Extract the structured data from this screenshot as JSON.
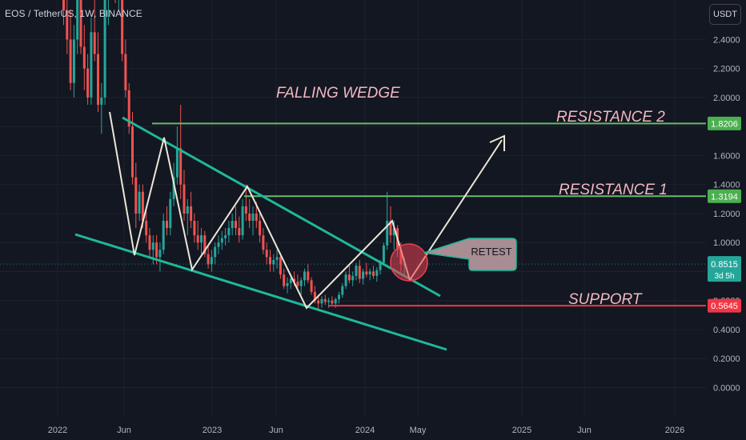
{
  "header": {
    "symbol_title": "EOS / TetherUS, 1W, BINANCE",
    "currency": "USDT"
  },
  "chart_data": {
    "type": "candlestick",
    "symbol": "EOS / TetherUS",
    "interval": "1W",
    "exchange": "BINANCE",
    "y_axis": {
      "ticks": [
        0.0,
        0.2,
        0.4,
        0.6,
        0.8,
        1.0,
        1.2,
        1.4,
        1.6,
        1.8,
        2.0,
        2.2,
        2.4
      ],
      "tick_labels": [
        "0.0000",
        "0.2000",
        "0.4000",
        "0.6000",
        "0.8000",
        "1.0000",
        "1.2000",
        "1.4000",
        "1.6000",
        "1.8000",
        "2.0000",
        "2.2000",
        "2.4000"
      ],
      "range": [
        -0.05,
        2.6
      ]
    },
    "x_axis": {
      "labels": [
        "2022",
        "Jun",
        "2023",
        "Jun",
        "2024",
        "May",
        "2025",
        "Jun",
        "2026"
      ]
    },
    "price_labels": [
      {
        "value": 1.8206,
        "text": "1.8206",
        "color": "#4caf50"
      },
      {
        "value": 1.3194,
        "text": "1.3194",
        "color": "#4caf50"
      },
      {
        "value": 0.8515,
        "text": "0.8515",
        "sub": "3d 5h",
        "color": "#26a69a"
      },
      {
        "value": 0.5645,
        "text": "0.5645",
        "color": "#f23645"
      }
    ],
    "annotations": {
      "pattern": "FALLING WEDGE",
      "resistance_2": "RESISTANCE 2",
      "resistance_1": "RESISTANCE 1",
      "support": "SUPPORT",
      "retest": "RETEST"
    },
    "levels": {
      "resistance_2": 1.8206,
      "resistance_1": 1.3194,
      "support": 0.5645
    },
    "candles": [
      [
        2.95,
        3.05,
        2.5,
        2.6
      ],
      [
        2.6,
        2.8,
        2.3,
        2.4
      ],
      [
        2.4,
        2.6,
        2.05,
        2.1
      ],
      [
        2.1,
        2.5,
        2.0,
        2.4
      ],
      [
        2.4,
        2.9,
        2.3,
        2.8
      ],
      [
        2.8,
        2.95,
        2.3,
        2.35
      ],
      [
        2.35,
        2.5,
        2.05,
        2.2
      ],
      [
        2.2,
        2.3,
        1.95,
        2.0
      ],
      [
        2.0,
        2.55,
        1.95,
        2.45
      ],
      [
        2.45,
        2.7,
        2.25,
        2.3
      ],
      [
        2.3,
        2.45,
        1.9,
        1.95
      ],
      [
        1.95,
        2.1,
        1.75,
        2.0
      ],
      [
        2.0,
        2.8,
        1.95,
        2.7
      ],
      [
        2.7,
        3.05,
        2.5,
        2.9
      ],
      [
        2.9,
        3.2,
        2.7,
        3.0
      ],
      [
        3.0,
        3.2,
        2.65,
        2.7
      ],
      [
        2.7,
        2.95,
        2.6,
        2.85
      ],
      [
        2.85,
        2.9,
        2.25,
        2.3
      ],
      [
        2.3,
        2.4,
        2.0,
        2.05
      ],
      [
        2.05,
        2.1,
        1.75,
        1.8
      ],
      [
        1.8,
        1.9,
        1.4,
        1.45
      ],
      [
        1.45,
        1.55,
        1.1,
        1.2
      ],
      [
        1.2,
        1.4,
        1.15,
        1.35
      ],
      [
        1.35,
        1.4,
        1.1,
        1.15
      ],
      [
        1.15,
        1.25,
        1.0,
        1.05
      ],
      [
        1.05,
        1.1,
        0.9,
        0.95
      ],
      [
        0.95,
        1.05,
        0.85,
        1.0
      ],
      [
        1.0,
        1.05,
        0.85,
        0.9
      ],
      [
        0.9,
        1.0,
        0.8,
        0.95
      ],
      [
        0.95,
        1.2,
        0.92,
        1.15
      ],
      [
        1.15,
        1.25,
        1.05,
        1.1
      ],
      [
        1.1,
        1.35,
        1.05,
        1.3
      ],
      [
        1.3,
        1.55,
        1.25,
        1.45
      ],
      [
        1.45,
        1.8,
        1.4,
        1.65
      ],
      [
        1.65,
        1.95,
        1.3,
        1.4
      ],
      [
        1.4,
        1.5,
        1.15,
        1.2
      ],
      [
        1.2,
        1.3,
        1.05,
        1.25
      ],
      [
        1.25,
        1.35,
        1.1,
        1.15
      ],
      [
        1.15,
        1.2,
        1.0,
        1.05
      ],
      [
        1.05,
        1.15,
        0.95,
        1.0
      ],
      [
        1.0,
        1.1,
        0.92,
        1.05
      ],
      [
        1.05,
        1.08,
        0.9,
        0.92
      ],
      [
        0.92,
        0.98,
        0.82,
        0.85
      ],
      [
        0.85,
        0.95,
        0.8,
        0.9
      ],
      [
        0.9,
        1.0,
        0.85,
        0.97
      ],
      [
        0.97,
        1.05,
        0.92,
        1.0
      ],
      [
        1.0,
        1.08,
        0.95,
        1.03
      ],
      [
        1.03,
        1.1,
        0.98,
        1.05
      ],
      [
        1.05,
        1.15,
        1.0,
        1.1
      ],
      [
        1.1,
        1.2,
        1.05,
        1.15
      ],
      [
        1.15,
        1.25,
        1.05,
        1.1
      ],
      [
        1.1,
        1.18,
        1.0,
        1.05
      ],
      [
        1.05,
        1.3,
        1.02,
        1.25
      ],
      [
        1.25,
        1.4,
        1.15,
        1.2
      ],
      [
        1.2,
        1.3,
        1.1,
        1.15
      ],
      [
        1.15,
        1.25,
        1.05,
        1.2
      ],
      [
        1.2,
        1.28,
        1.1,
        1.15
      ],
      [
        1.15,
        1.2,
        1.0,
        1.05
      ],
      [
        1.05,
        1.1,
        0.92,
        0.95
      ],
      [
        0.95,
        1.0,
        0.85,
        0.9
      ],
      [
        0.9,
        0.95,
        0.8,
        0.85
      ],
      [
        0.85,
        0.92,
        0.8,
        0.88
      ],
      [
        0.88,
        0.95,
        0.82,
        0.9
      ],
      [
        0.9,
        0.93,
        0.75,
        0.78
      ],
      [
        0.78,
        0.82,
        0.68,
        0.7
      ],
      [
        0.7,
        0.76,
        0.65,
        0.72
      ],
      [
        0.72,
        0.78,
        0.68,
        0.75
      ],
      [
        0.75,
        0.8,
        0.7,
        0.73
      ],
      [
        0.73,
        0.78,
        0.68,
        0.7
      ],
      [
        0.7,
        0.76,
        0.64,
        0.74
      ],
      [
        0.74,
        0.82,
        0.7,
        0.8
      ],
      [
        0.8,
        0.85,
        0.72,
        0.74
      ],
      [
        0.74,
        0.76,
        0.64,
        0.66
      ],
      [
        0.66,
        0.7,
        0.58,
        0.6
      ],
      [
        0.6,
        0.64,
        0.54,
        0.58
      ],
      [
        0.58,
        0.63,
        0.55,
        0.61
      ],
      [
        0.61,
        0.64,
        0.57,
        0.59
      ],
      [
        0.59,
        0.62,
        0.55,
        0.6
      ],
      [
        0.6,
        0.63,
        0.56,
        0.58
      ],
      [
        0.58,
        0.62,
        0.55,
        0.61
      ],
      [
        0.61,
        0.66,
        0.58,
        0.64
      ],
      [
        0.64,
        0.72,
        0.62,
        0.7
      ],
      [
        0.7,
        0.8,
        0.68,
        0.78
      ],
      [
        0.78,
        0.85,
        0.72,
        0.74
      ],
      [
        0.74,
        0.8,
        0.7,
        0.77
      ],
      [
        0.77,
        0.86,
        0.74,
        0.84
      ],
      [
        0.84,
        0.88,
        0.72,
        0.75
      ],
      [
        0.75,
        0.82,
        0.71,
        0.8
      ],
      [
        0.8,
        0.86,
        0.76,
        0.78
      ],
      [
        0.78,
        0.82,
        0.74,
        0.8
      ],
      [
        0.8,
        0.84,
        0.75,
        0.77
      ],
      [
        0.77,
        0.83,
        0.73,
        0.81
      ],
      [
        0.81,
        0.88,
        0.78,
        0.86
      ],
      [
        0.86,
        1.0,
        0.84,
        0.98
      ],
      [
        0.98,
        1.35,
        0.95,
        1.15
      ],
      [
        1.15,
        1.25,
        1.0,
        1.05
      ],
      [
        1.05,
        1.15,
        0.95,
        1.1
      ],
      [
        1.1,
        1.12,
        0.9,
        0.95
      ],
      [
        0.95,
        1.0,
        0.8,
        0.85
      ],
      [
        0.85,
        0.9,
        0.78,
        0.8515
      ]
    ]
  }
}
